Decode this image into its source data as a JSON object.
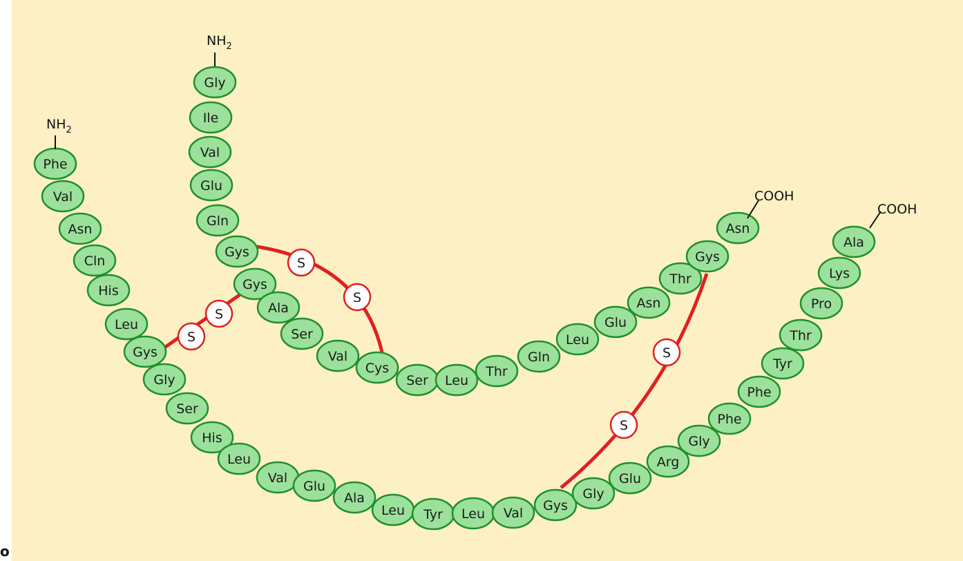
{
  "colors": {
    "background": "#fdf0c4",
    "bead_fill": "#9be19b",
    "bead_stroke": "#1f8f2c",
    "bond": "#e02020",
    "sulfur_fill": "#ffffff"
  },
  "corner_glyph": "o",
  "chain_a": {
    "n_terminus": "NH",
    "n_terminus_sub": "2",
    "c_terminus": "COOH",
    "residues": [
      "Gly",
      "Ile",
      "Val",
      "Glu",
      "Gln",
      "Gys",
      "Gys",
      "Ala",
      "Ser",
      "Val",
      "Cys",
      "Ser",
      "Leu",
      "Thr",
      "Gln",
      "Leu",
      "Glu",
      "Asn",
      "Thr",
      "Gys",
      "Asn"
    ]
  },
  "chain_b": {
    "n_terminus": "NH",
    "n_terminus_sub": "2",
    "c_terminus": "COOH",
    "residues": [
      "Phe",
      "Val",
      "Asn",
      "Cln",
      "His",
      "Leu",
      "Gys",
      "Gly",
      "Ser",
      "His",
      "Leu",
      "Val",
      "Glu",
      "Ala",
      "Leu",
      "Tyr",
      "Leu",
      "Val",
      "Gys",
      "Gly",
      "Glu",
      "Arg",
      "Gly",
      "Phe",
      "Phe",
      "Tyr",
      "Thr",
      "Pro",
      "Lys",
      "Ala"
    ]
  },
  "disulfide_bonds": [
    {
      "from": "A6 Gys",
      "to": "A11 Cys",
      "atoms": [
        "S",
        "S"
      ]
    },
    {
      "from": "A7 Gys",
      "to": "B7 Gys",
      "atoms": [
        "S",
        "S"
      ]
    },
    {
      "from": "A20 Gys",
      "to": "B19 Gys",
      "atoms": [
        "S",
        "S"
      ]
    }
  ]
}
